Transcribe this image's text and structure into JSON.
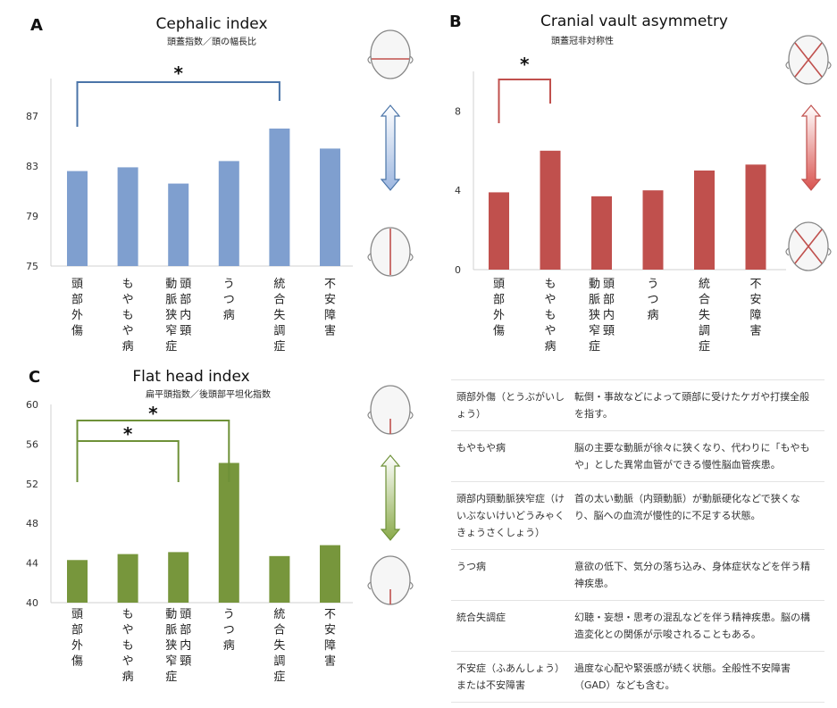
{
  "panels": [
    {
      "letter": "A",
      "chart_data": {
        "type": "bar",
        "title": "Cephalic index",
        "subtitle": "頭蓋指数／頭の幅長比",
        "categories": [
          "頭部外傷",
          "もやもや病",
          "頭部内頸動脈狭窄症",
          "うつ病",
          "統合失調症",
          "不安障害"
        ],
        "values": [
          82.6,
          82.9,
          81.6,
          83.4,
          86.0,
          84.4
        ],
        "ylim": [
          75,
          90
        ],
        "yticks": [
          75,
          79,
          83,
          87
        ],
        "tick_labels": [
          "75",
          "79",
          "83",
          "87"
        ],
        "color": "#7f9fcf",
        "significance": [
          {
            "from": 0,
            "to": 4,
            "label": "*"
          }
        ]
      }
    },
    {
      "letter": "B",
      "chart_data": {
        "type": "bar",
        "title": "Cranial vault asymmetry",
        "subtitle": "頭蓋冠非対称性",
        "categories": [
          "頭部外傷",
          "もやもや病",
          "頭部内頸動脈狭窄症",
          "うつ病",
          "統合失調症",
          "不安障害"
        ],
        "values": [
          3.9,
          6.0,
          3.7,
          4.0,
          5.0,
          5.3
        ],
        "ylim": [
          0,
          10
        ],
        "yticks": [
          0,
          4,
          8
        ],
        "tick_labels": [
          "0",
          "4",
          "8"
        ],
        "color": "#c0504d",
        "significance": [
          {
            "from": 0,
            "to": 1,
            "label": "*"
          }
        ]
      }
    },
    {
      "letter": "C",
      "chart_data": {
        "type": "bar",
        "title": "Flat head index",
        "subtitle": "扁平頭指数／後頭部平坦化指数",
        "categories": [
          "頭部外傷",
          "もやもや病",
          "頭部内頸動脈狭窄症",
          "うつ病",
          "統合失調症",
          "不安障害"
        ],
        "values": [
          44.3,
          44.9,
          45.1,
          54.1,
          44.7,
          45.8
        ],
        "ylim": [
          40,
          60
        ],
        "yticks": [
          40,
          44,
          48,
          52,
          56,
          60
        ],
        "tick_labels": [
          "40",
          "44",
          "48",
          "52",
          "56",
          "60"
        ],
        "color": "#77963c",
        "significance": [
          {
            "from": 0,
            "to": 3,
            "label": "*"
          },
          {
            "from": 0,
            "to": 2,
            "label": "*"
          }
        ]
      }
    }
  ],
  "colors": {
    "blue": "#4a74a8",
    "red": "#c0504d",
    "green": "#6e9138"
  },
  "glossary": [
    {
      "term": "頭部外傷（とうぶがいしょう）",
      "definition": "転倒・事故などによって頭部に受けたケガや打撲全般を指す。"
    },
    {
      "term": "もやもや病",
      "definition": "脳の主要な動脈が徐々に狭くなり、代わりに「もやもや」とした異常血管ができる慢性脳血管疾患。"
    },
    {
      "term": "頭部内頸動脈狭窄症（けいぶないけいどうみゃくきょうさくしょう）",
      "definition": "首の太い動脈（内頸動脈）が動脈硬化などで狭くなり、脳への血流が慢性的に不足する状態。"
    },
    {
      "term": "うつ病",
      "definition": "意欲の低下、気分の落ち込み、身体症状などを伴う精神疾患。"
    },
    {
      "term": "統合失調症",
      "definition": "幻聴・妄想・思考の混乱などを伴う精神疾患。脳の構造変化との関係が示唆されることもある。"
    },
    {
      "term": "不安症（ふあんしょう）または不安障害",
      "definition": "過度な心配や緊張感が続く状態。全般性不安障害（GAD）なども含む。"
    }
  ]
}
